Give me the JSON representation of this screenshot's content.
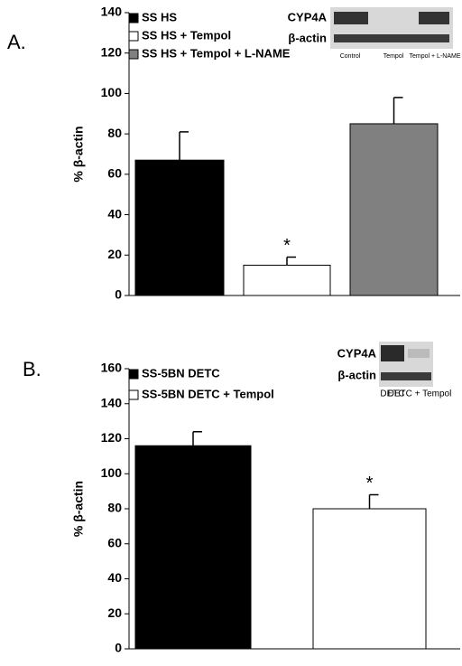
{
  "chart_data": [
    {
      "type": "bar",
      "panel_label": "A.",
      "ylabel": "% β-actin",
      "ylim": [
        0,
        140
      ],
      "yticks": [
        0,
        20,
        40,
        60,
        80,
        100,
        120,
        140
      ],
      "series": [
        {
          "name": "SS HS",
          "color": "#000000",
          "values": [
            67
          ],
          "errors": [
            14
          ]
        },
        {
          "name": "SS HS + Tempol",
          "color": "#ffffff",
          "values": [
            15
          ],
          "errors": [
            4
          ]
        },
        {
          "name": "SS HS + Tempol + L-NAME",
          "color": "#808080",
          "values": [
            85
          ],
          "errors": [
            13
          ]
        }
      ],
      "annotation": "*",
      "inset": {
        "bands": [
          "CYP4A",
          "β-actin"
        ],
        "lanes": [
          "Control",
          "Tempol",
          "Tempol + L-NAME"
        ]
      }
    },
    {
      "type": "bar",
      "panel_label": "B.",
      "ylabel": "% β-actin",
      "ylim": [
        0,
        160
      ],
      "yticks": [
        0,
        20,
        40,
        60,
        80,
        100,
        120,
        140,
        160
      ],
      "series": [
        {
          "name": "SS-5BN DETC",
          "color": "#000000",
          "values": [
            116
          ],
          "errors": [
            8
          ]
        },
        {
          "name": "SS-5BN DETC + Tempol",
          "color": "#ffffff",
          "values": [
            80
          ],
          "errors": [
            8
          ]
        }
      ],
      "annotation": "*",
      "inset": {
        "bands": [
          "CYP4A",
          "β-actin"
        ],
        "lanes": [
          "DETC",
          "DETC + Tempol"
        ]
      }
    }
  ]
}
